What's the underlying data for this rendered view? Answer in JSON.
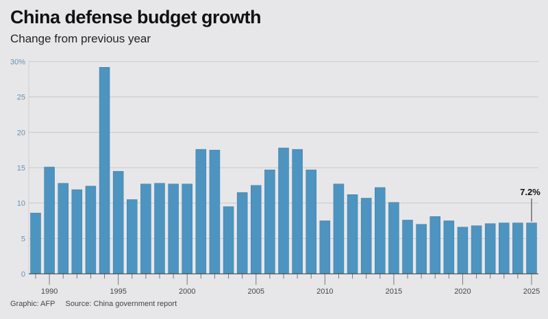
{
  "title": "China defense budget growth",
  "subtitle": "Change from previous year",
  "footer": {
    "graphic": "Graphic: AFP",
    "source": "Source: China government report"
  },
  "chart_data": {
    "type": "bar",
    "title": "China defense budget growth",
    "subtitle": "Change from previous year",
    "categories": [
      1989,
      1990,
      1991,
      1992,
      1993,
      1994,
      1995,
      1996,
      1997,
      1998,
      1999,
      2000,
      2001,
      2002,
      2003,
      2004,
      2005,
      2006,
      2007,
      2008,
      2009,
      2010,
      2011,
      2012,
      2013,
      2014,
      2015,
      2016,
      2017,
      2018,
      2019,
      2020,
      2021,
      2022,
      2023,
      2024,
      2025
    ],
    "values": [
      8.6,
      15.1,
      12.8,
      11.9,
      12.4,
      29.2,
      14.5,
      10.5,
      12.7,
      12.8,
      12.7,
      12.7,
      17.6,
      17.5,
      9.5,
      11.5,
      12.5,
      14.7,
      17.8,
      17.6,
      14.7,
      7.5,
      12.7,
      11.2,
      10.7,
      12.2,
      10.1,
      7.6,
      7.0,
      8.1,
      7.5,
      6.6,
      6.8,
      7.1,
      7.2,
      7.2,
      7.2
    ],
    "ylim": [
      0,
      30
    ],
    "yticks": [
      "0",
      "5",
      "10",
      "15",
      "20",
      "25",
      "30%"
    ],
    "yticks_values": [
      0,
      5,
      10,
      15,
      20,
      25,
      30
    ],
    "xtick_labels": [
      "1990",
      "1995",
      "2000",
      "2005",
      "2010",
      "2015",
      "2020",
      "2025"
    ],
    "annotation": "7.2%",
    "grid": true,
    "bar_color": "#4d94c0"
  }
}
